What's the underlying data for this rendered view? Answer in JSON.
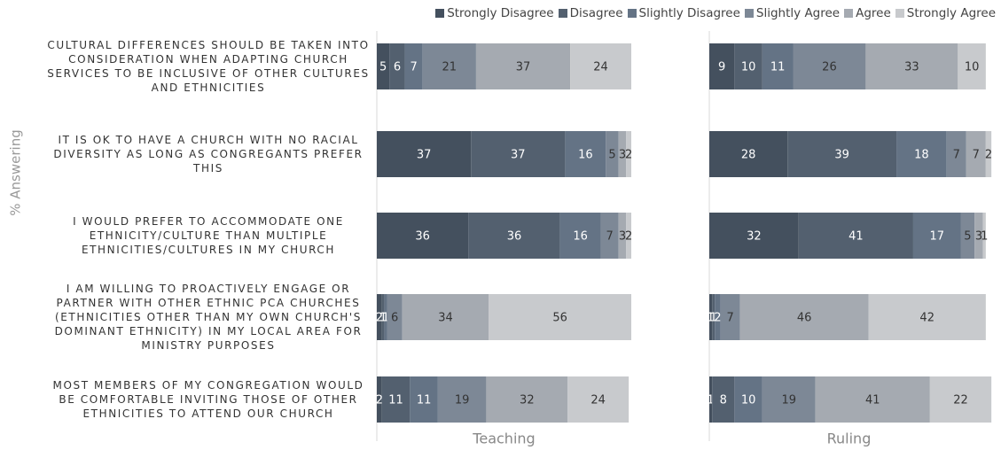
{
  "chart_data": {
    "type": "bar",
    "orientation": "horizontal",
    "stacked": true,
    "ylabel": "% Answering",
    "panels": [
      "Teaching",
      "Ruling"
    ],
    "categories": [
      "Cultural differences should be taken into consideration when adapting church services to be inclusive of other cultures and ethnicities",
      "It is ok to have a church with no racial diversity as long as congregants prefer this",
      "I would prefer to accommodate one ethnicity/culture than multiple ethnicities/cultures in my church",
      "I am willing to proactively engage or partner with other ethnic PCA churches (ethnicities other than my own church's dominant ethnicity) in my local area for ministry purposes",
      "Most members of my congregation would be comfortable inviting those of other ethnicities to attend our church"
    ],
    "xlim": [
      0,
      100
    ],
    "series": [
      {
        "name": "Strongly Disagree",
        "color": "#44505e",
        "values": [
          [
            5,
            37,
            36,
            2,
            2
          ],
          [
            9,
            28,
            32,
            1,
            1
          ]
        ]
      },
      {
        "name": "Disagree",
        "color": "#53606f",
        "values": [
          [
            6,
            37,
            36,
            1,
            11
          ],
          [
            10,
            39,
            41,
            1,
            8
          ]
        ]
      },
      {
        "name": "Slightly Disagree",
        "color": "#647385",
        "values": [
          [
            7,
            16,
            16,
            1,
            11
          ],
          [
            11,
            18,
            17,
            2,
            10
          ]
        ]
      },
      {
        "name": "Slightly Agree",
        "color": "#7d8896",
        "values": [
          [
            21,
            5,
            7,
            6,
            19
          ],
          [
            26,
            7,
            5,
            7,
            19
          ]
        ]
      },
      {
        "name": "Agree",
        "color": "#a5aab1",
        "values": [
          [
            37,
            3,
            3,
            34,
            32
          ],
          [
            33,
            7,
            3,
            46,
            41
          ]
        ]
      },
      {
        "name": "Strongly Agree",
        "color": "#c8cacd",
        "values": [
          [
            24,
            2,
            2,
            56,
            24
          ],
          [
            10,
            2,
            1,
            42,
            22
          ]
        ]
      }
    ]
  }
}
